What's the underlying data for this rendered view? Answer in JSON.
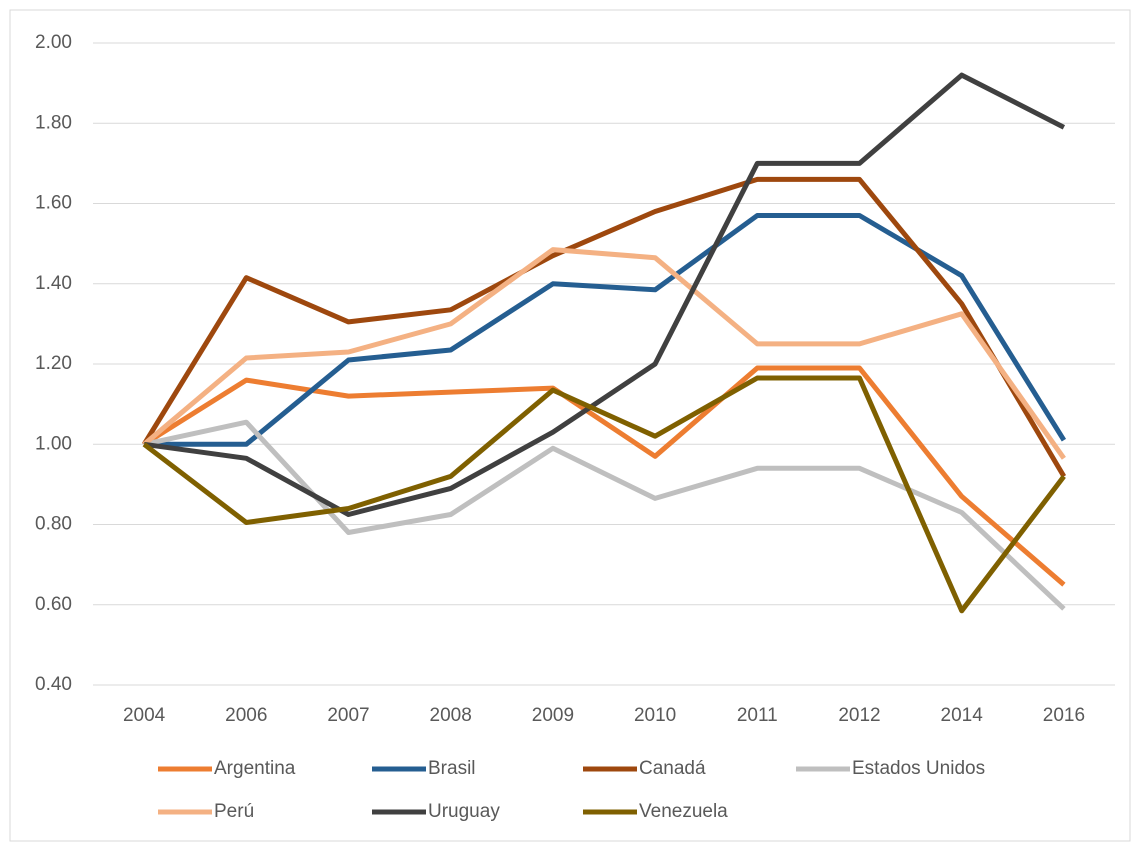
{
  "chart_data": {
    "type": "line",
    "categories": [
      "2004",
      "2006",
      "2007",
      "2008",
      "2009",
      "2010",
      "2011",
      "2012",
      "2014",
      "2016"
    ],
    "series": [
      {
        "name": "Argentina",
        "color": "#ed7d31",
        "values": [
          1.0,
          1.16,
          1.12,
          1.13,
          1.14,
          0.97,
          1.19,
          1.19,
          0.87,
          0.65
        ]
      },
      {
        "name": "Brasil",
        "color": "#255e91",
        "values": [
          1.0,
          1.0,
          1.21,
          1.235,
          1.4,
          1.385,
          1.57,
          1.57,
          1.42,
          1.01
        ]
      },
      {
        "name": "Canadá",
        "color": "#9e480e",
        "values": [
          1.0,
          1.415,
          1.305,
          1.335,
          1.47,
          1.58,
          1.66,
          1.66,
          1.35,
          0.92
        ]
      },
      {
        "name": "Estados Unidos",
        "color": "#bfbfbf",
        "values": [
          1.0,
          1.055,
          0.78,
          0.825,
          0.99,
          0.865,
          0.94,
          0.94,
          0.83,
          0.59
        ]
      },
      {
        "name": "Perú",
        "color": "#f4b183",
        "values": [
          1.0,
          1.215,
          1.23,
          1.3,
          1.485,
          1.465,
          1.25,
          1.25,
          1.325,
          0.965
        ]
      },
      {
        "name": "Uruguay",
        "color": "#404040",
        "values": [
          1.0,
          0.965,
          0.825,
          0.89,
          1.03,
          1.2,
          1.7,
          1.7,
          1.92,
          1.79
        ]
      },
      {
        "name": "Venezuela",
        "color": "#7f6000",
        "values": [
          1.0,
          0.805,
          0.84,
          0.92,
          1.135,
          1.02,
          1.165,
          1.165,
          0.585,
          0.92
        ]
      }
    ],
    "ylim": [
      0.4,
      2.0
    ],
    "yticks": [
      {
        "value": 0.4,
        "label": "0.40"
      },
      {
        "value": 0.6,
        "label": "0.60"
      },
      {
        "value": 0.8,
        "label": "0.80"
      },
      {
        "value": 1.0,
        "label": "1.00"
      },
      {
        "value": 1.2,
        "label": "1.20"
      },
      {
        "value": 1.4,
        "label": "1.40"
      },
      {
        "value": 1.6,
        "label": "1.60"
      },
      {
        "value": 1.8,
        "label": "1.80"
      },
      {
        "value": 2.0,
        "label": "2.00"
      }
    ],
    "grid": true,
    "legend": "bottom"
  }
}
